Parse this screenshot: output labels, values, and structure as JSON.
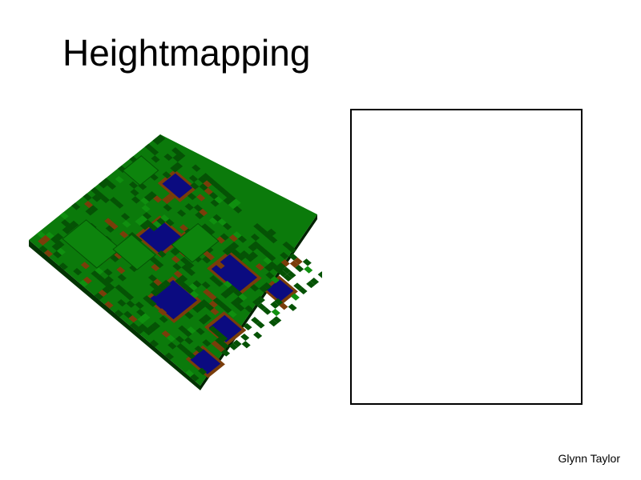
{
  "slide": {
    "title": "Heightmapping",
    "author": "Glynn Taylor"
  },
  "terrain_image": {
    "icon": "voxel-terrain-image",
    "colors": {
      "grass": "#0b7a0b",
      "grass_dark": "#055205",
      "water": "#0b0b80",
      "dirt": "#7a3d0a",
      "edge": "#033303"
    }
  },
  "placeholder": {
    "icon": "empty-frame"
  }
}
